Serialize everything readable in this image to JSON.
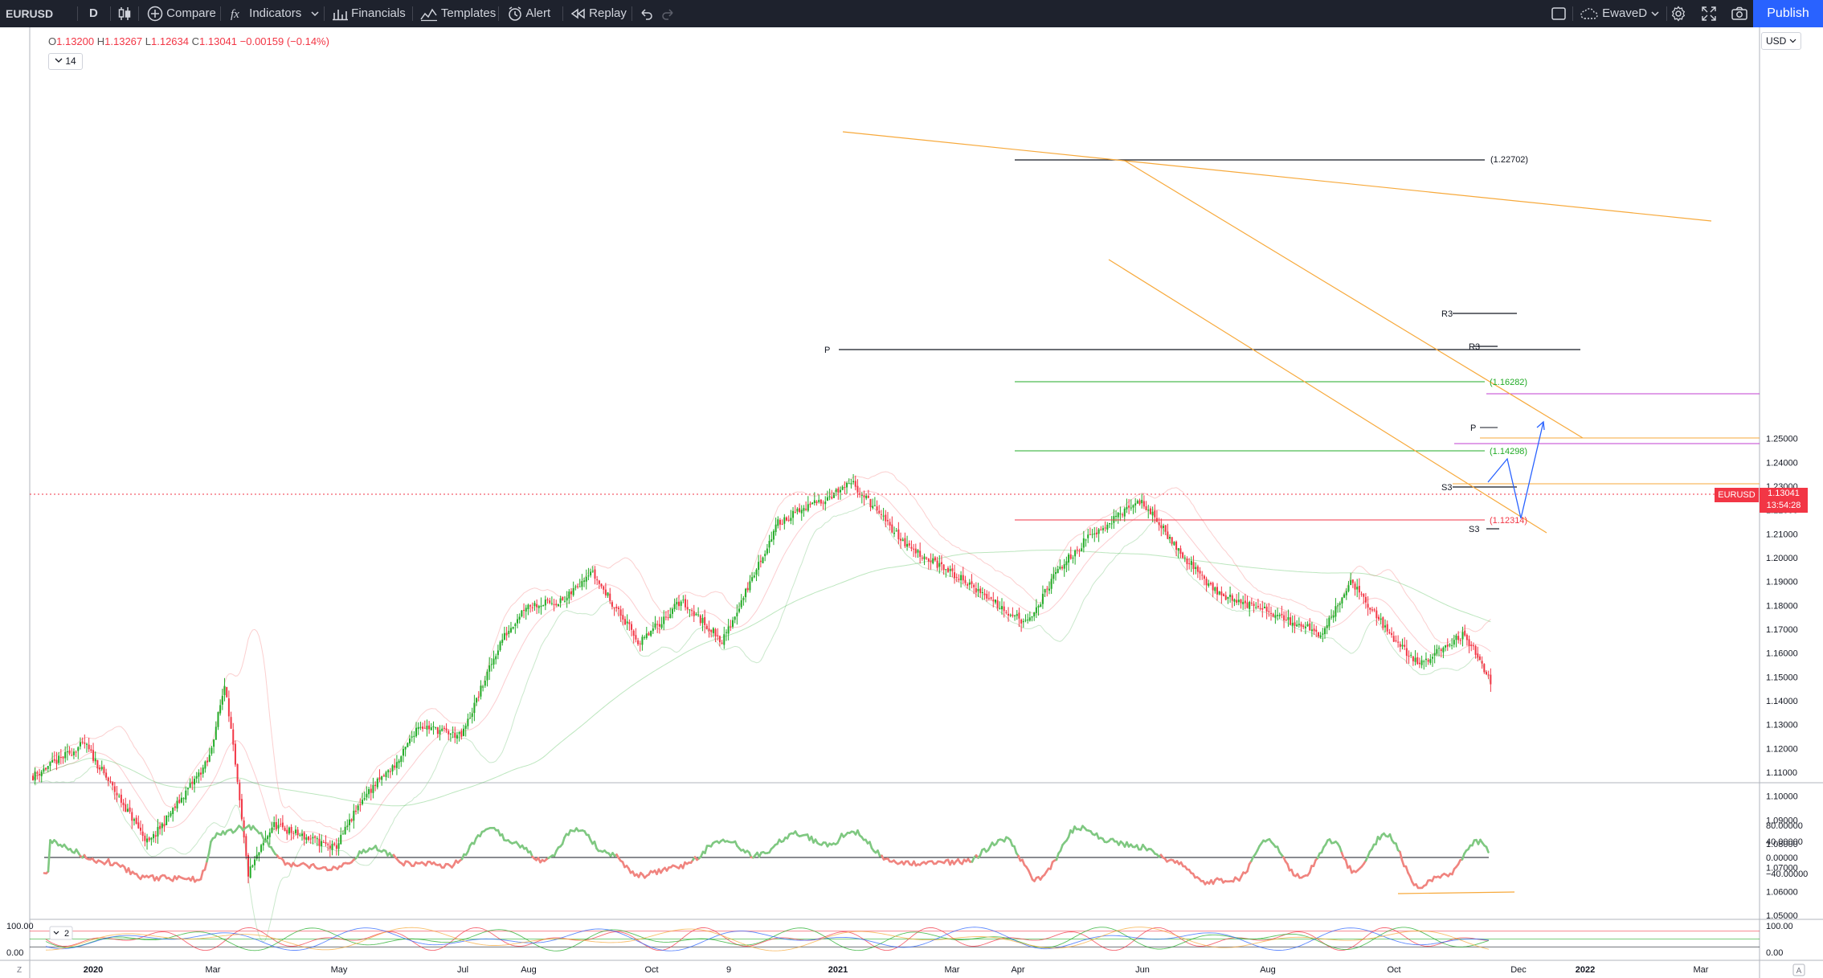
{
  "toolbar": {
    "symbol": "EURUSD",
    "interval": "D",
    "compare": "Compare",
    "indicators": "Indicators",
    "financials": "Financials",
    "templates": "Templates",
    "alert": "Alert",
    "replay": "Replay",
    "layout_name": "EwaveD",
    "publish": "Publish"
  },
  "legend": {
    "o_label": "O",
    "o": "1.13200",
    "h_label": "H",
    "h": "1.13267",
    "l_label": "L",
    "l": "1.12634",
    "c_label": "C",
    "c": "1.13041",
    "change": "−0.00159 (−0.14%)",
    "indicator_value": "14"
  },
  "price_scale": {
    "currency": "USD"
  },
  "last_price": {
    "symbol": "EURUSD",
    "price": "1.13041",
    "countdown": "13:54:28"
  },
  "bottom": {
    "left_label": "Z",
    "right_label": "A",
    "pane3_legend": "2"
  },
  "colors": {
    "up": "#22ab27",
    "down": "#f23645",
    "toolbar_bg": "#1e222d",
    "accent": "#2962ff",
    "trendline": "#f7a93b",
    "projection": "#2962ff",
    "osc_up": "#7fc881",
    "osc_down": "#f0847f"
  },
  "chart_data": [
    {
      "type": "line",
      "title": "",
      "xlabel": "",
      "ylabel": "",
      "x_ticks": [
        "2020",
        "Mar",
        "May",
        "Jul",
        "Aug",
        "Oct",
        "9",
        "2021",
        "Mar",
        "Apr",
        "Jun",
        "Aug",
        "Oct",
        "Dec",
        "2022",
        "Mar"
      ],
      "y_ticks": [
        "1.25000",
        "1.24000",
        "1.23000",
        "1.22000",
        "1.21000",
        "1.20000",
        "1.19000",
        "1.18000",
        "1.17000",
        "1.16000",
        "1.15000",
        "1.14000",
        "1.13000",
        "1.12000",
        "1.11000",
        "1.10000",
        "1.09000",
        "1.08000",
        "1.07000",
        "1.06000",
        "1.05000"
      ],
      "ylim": [
        1.046,
        1.262
      ],
      "series": [
        {
          "x": [
            "2019-12-01",
            "2020-01-01",
            "2020-02-01",
            "2020-03-01",
            "2020-03-09",
            "2020-03-20",
            "2020-04-01",
            "2020-05-01",
            "2020-05-15",
            "2020-06-01",
            "2020-06-10",
            "2020-07-01",
            "2020-07-20",
            "2020-08-01",
            "2020-08-20",
            "2020-09-01",
            "2020-09-25",
            "2020-10-15",
            "2020-11-04",
            "2020-12-01",
            "2021-01-06",
            "2021-02-01",
            "2021-03-01",
            "2021-03-31",
            "2021-04-15",
            "2021-05-01",
            "2021-05-25",
            "2021-06-15",
            "2021-07-01",
            "2021-08-01",
            "2021-08-20",
            "2021-09-03",
            "2021-09-20",
            "2021-10-06",
            "2021-10-28",
            "2021-11-12",
            "2021-11-24",
            "2021-11-26"
          ],
          "values": [
            1.105,
            1.122,
            1.08,
            1.115,
            1.148,
            1.067,
            1.088,
            1.078,
            1.1,
            1.115,
            1.13,
            1.125,
            1.165,
            1.18,
            1.182,
            1.195,
            1.164,
            1.182,
            1.165,
            1.215,
            1.231,
            1.205,
            1.19,
            1.172,
            1.195,
            1.21,
            1.224,
            1.2,
            1.185,
            1.175,
            1.168,
            1.19,
            1.17,
            1.155,
            1.168,
            1.145,
            1.124,
            1.1304
          ]
        }
      ],
      "annotations": [
        "(1.22702)",
        "(1.16282)",
        "(1.14298)",
        "(1.12314)",
        "P",
        "R3",
        "S3"
      ]
    },
    {
      "type": "line",
      "title": "",
      "y_ticks": [
        "80.00000",
        "40.00000",
        "0.00000",
        "−40.00000"
      ],
      "ylim": [
        -95,
        85
      ],
      "series": [
        {
          "x": [
            "2019-12-15",
            "2020-01-10",
            "2020-02-01",
            "2020-02-25",
            "2020-03-05",
            "2020-03-20",
            "2020-04-10",
            "2020-05-01",
            "2020-05-20",
            "2020-06-05",
            "2020-06-25",
            "2020-07-15",
            "2020-07-25",
            "2020-08-10",
            "2020-08-25",
            "2020-09-10",
            "2020-09-25",
            "2020-10-15",
            "2020-11-05",
            "2020-11-20",
            "2020-12-10",
            "2020-12-25",
            "2021-01-05",
            "2021-01-25",
            "2021-02-10",
            "2021-03-01",
            "2021-03-20",
            "2021-04-05",
            "2021-04-25",
            "2021-05-10",
            "2021-05-25",
            "2021-06-10",
            "2021-06-25",
            "2021-07-10",
            "2021-07-25",
            "2021-08-10",
            "2021-08-25",
            "2021-09-05",
            "2021-09-20",
            "2021-10-06",
            "2021-10-20",
            "2021-11-03",
            "2021-11-12",
            "2021-11-24"
          ],
          "values": [
            40,
            -10,
            -50,
            -55,
            60,
            75,
            -20,
            -25,
            25,
            -15,
            -20,
            70,
            40,
            -10,
            70,
            10,
            -45,
            -20,
            45,
            5,
            60,
            30,
            65,
            -10,
            -15,
            -10,
            45,
            -55,
            75,
            40,
            25,
            -10,
            -60,
            -55,
            40,
            -50,
            40,
            -35,
            60,
            -70,
            -40,
            40,
            10,
            -40
          ]
        }
      ]
    },
    {
      "type": "line",
      "title": "",
      "y_ticks": [
        "100.00",
        "0.00"
      ],
      "ylim": [
        0,
        100
      ]
    }
  ]
}
